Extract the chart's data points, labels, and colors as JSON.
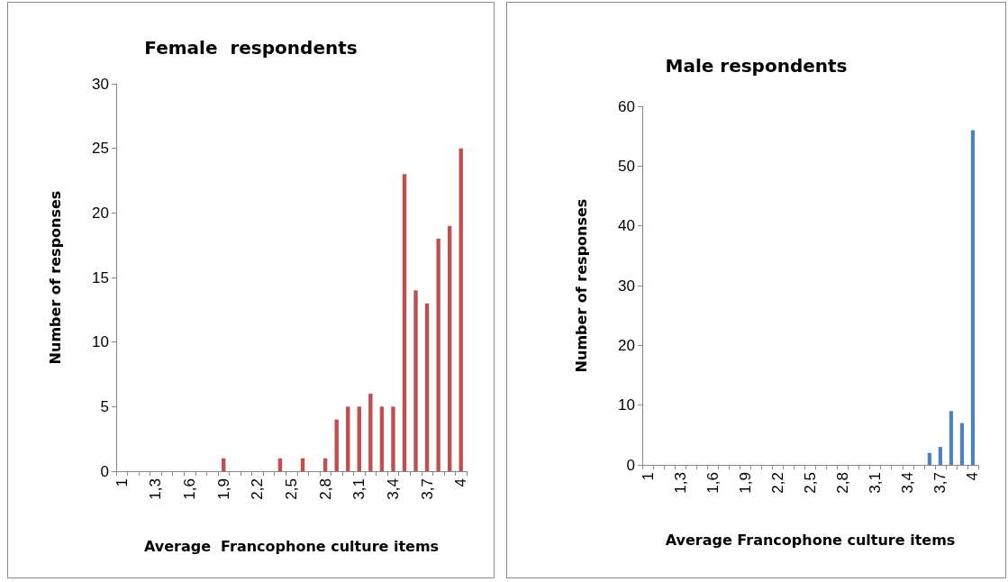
{
  "chart_data": [
    {
      "type": "bar",
      "title": "Female  respondents",
      "xlabel": "Average  Francophone culture items",
      "ylabel": "Number of responses",
      "categories": [
        "1",
        null,
        null,
        "1,3",
        null,
        null,
        "1,6",
        null,
        null,
        "1,9",
        null,
        null,
        "2,2",
        null,
        null,
        "2,5",
        null,
        null,
        "2,8",
        null,
        null,
        "3,1",
        null,
        null,
        "3,4",
        null,
        null,
        "3,7",
        null,
        null,
        "4"
      ],
      "values": [
        0,
        0,
        0,
        0,
        0,
        0,
        0,
        0,
        0,
        1,
        0,
        0,
        0,
        0,
        1,
        0,
        1,
        0,
        1,
        4,
        5,
        5,
        6,
        5,
        5,
        23,
        14,
        13,
        18,
        19,
        25
      ],
      "color": "#c0504d",
      "ylim": [
        0,
        30
      ],
      "yticks": [
        0,
        5,
        10,
        15,
        20,
        25,
        30
      ]
    },
    {
      "type": "bar",
      "title": "Male respondents",
      "xlabel": "Average Francophone culture items",
      "ylabel": "Number of responses",
      "categories": [
        "1",
        null,
        null,
        "1,3",
        null,
        null,
        "1,6",
        null,
        null,
        "1,9",
        null,
        null,
        "2,2",
        null,
        null,
        "2,5",
        null,
        null,
        "2,8",
        null,
        null,
        "3,1",
        null,
        null,
        "3,4",
        null,
        null,
        "3,7",
        null,
        null,
        "4"
      ],
      "values": [
        0,
        0,
        0,
        0,
        0,
        0,
        0,
        0,
        0,
        0,
        0,
        0,
        0,
        0,
        0,
        0,
        0,
        0,
        0,
        0,
        0,
        0,
        0,
        0,
        0,
        0,
        2,
        3,
        9,
        7,
        56
      ],
      "color": "#4f81bd",
      "ylim": [
        0,
        60
      ],
      "yticks": [
        0,
        10,
        20,
        30,
        40,
        50,
        60
      ]
    }
  ]
}
